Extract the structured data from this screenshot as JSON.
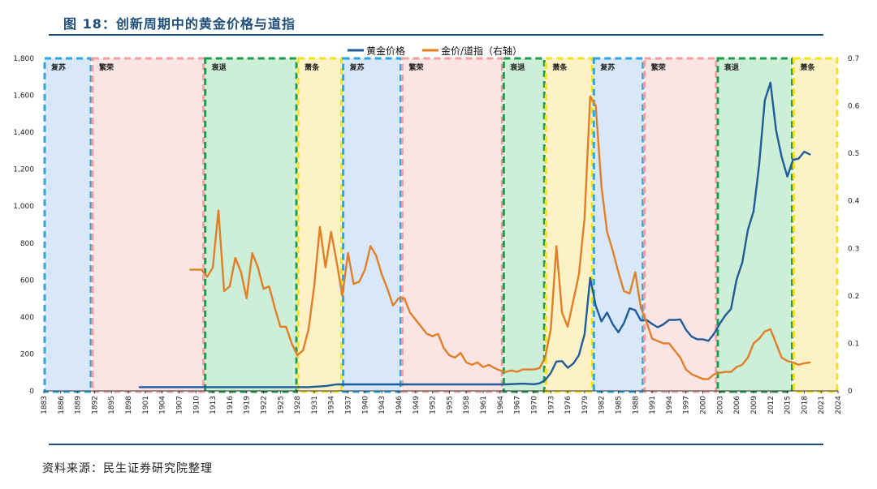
{
  "title": "图 18：创新周期中的黄金价格与道指",
  "source": "资料来源：民生证券研究院整理",
  "chart_data": {
    "type": "line",
    "legend": [
      "黄金价格",
      "金价/道指（右轴）"
    ],
    "legend_position": "top-center",
    "y_left": {
      "lim": [
        0,
        1800
      ],
      "ticks": [
        "0",
        "200",
        "400",
        "600",
        "800",
        "1,000",
        "1,200",
        "1,400",
        "1,600",
        "1,800"
      ]
    },
    "y_right": {
      "lim": [
        0,
        0.7
      ],
      "ticks": [
        "0",
        "0.1",
        "0.2",
        "0.3",
        "0.4",
        "0.5",
        "0.6",
        "0.7"
      ]
    },
    "xlim": [
      1883,
      2024
    ],
    "xticks": [
      "1883",
      "1886",
      "1889",
      "1892",
      "1895",
      "1898",
      "1901",
      "1904",
      "1907",
      "1910",
      "1913",
      "1916",
      "1919",
      "1922",
      "1925",
      "1928",
      "1931",
      "1934",
      "1937",
      "1940",
      "1943",
      "1946",
      "1949",
      "1952",
      "1955",
      "1958",
      "1961",
      "1964",
      "1967",
      "1970",
      "1973",
      "1976",
      "1979",
      "1982",
      "1985",
      "1988",
      "1991",
      "1994",
      "1997",
      "2000",
      "2003",
      "2006",
      "2009",
      "2012",
      "2015",
      "2018",
      "2021",
      "2024"
    ],
    "phases": [
      {
        "label": "复苏",
        "start": 1883,
        "end": 1891.5,
        "color": "blue"
      },
      {
        "label": "繁荣",
        "start": 1891.5,
        "end": 1911.5,
        "color": "red"
      },
      {
        "label": "衰退",
        "start": 1911.5,
        "end": 1928,
        "color": "green"
      },
      {
        "label": "萧条",
        "start": 1928,
        "end": 1936,
        "color": "yellow"
      },
      {
        "label": "复苏",
        "start": 1936,
        "end": 1946.5,
        "color": "blue"
      },
      {
        "label": "繁荣",
        "start": 1946.5,
        "end": 1964.5,
        "color": "red"
      },
      {
        "label": "衰退",
        "start": 1964.5,
        "end": 1972,
        "color": "green"
      },
      {
        "label": "萧条",
        "start": 1972,
        "end": 1980.5,
        "color": "yellow"
      },
      {
        "label": "复苏",
        "start": 1980.5,
        "end": 1989.5,
        "color": "blue"
      },
      {
        "label": "繁荣",
        "start": 1989.5,
        "end": 2002.5,
        "color": "red"
      },
      {
        "label": "衰退",
        "start": 2002.5,
        "end": 2016,
        "color": "green"
      },
      {
        "label": "萧条",
        "start": 2016,
        "end": 2024,
        "color": "yellow"
      }
    ],
    "series": [
      {
        "name": "黄金价格",
        "axis": "left",
        "color": "#1f5c99",
        "points": [
          [
            1900,
            20
          ],
          [
            1910,
            20
          ],
          [
            1920,
            20
          ],
          [
            1930,
            20
          ],
          [
            1933,
            26
          ],
          [
            1935,
            35
          ],
          [
            1945,
            35
          ],
          [
            1950,
            35
          ],
          [
            1960,
            35
          ],
          [
            1965,
            35
          ],
          [
            1968,
            39
          ],
          [
            1970,
            36
          ],
          [
            1971,
            41
          ],
          [
            1972,
            58
          ],
          [
            1973,
            97
          ],
          [
            1974,
            159
          ],
          [
            1975,
            161
          ],
          [
            1976,
            125
          ],
          [
            1977,
            148
          ],
          [
            1978,
            193
          ],
          [
            1979,
            307
          ],
          [
            1980,
            612
          ],
          [
            1981,
            460
          ],
          [
            1982,
            376
          ],
          [
            1983,
            424
          ],
          [
            1984,
            361
          ],
          [
            1985,
            317
          ],
          [
            1986,
            368
          ],
          [
            1987,
            447
          ],
          [
            1988,
            437
          ],
          [
            1989,
            381
          ],
          [
            1990,
            384
          ],
          [
            1991,
            362
          ],
          [
            1992,
            344
          ],
          [
            1993,
            360
          ],
          [
            1994,
            384
          ],
          [
            1995,
            384
          ],
          [
            1996,
            387
          ],
          [
            1997,
            331
          ],
          [
            1998,
            294
          ],
          [
            1999,
            279
          ],
          [
            2000,
            279
          ],
          [
            2001,
            271
          ],
          [
            2002,
            310
          ],
          [
            2003,
            363
          ],
          [
            2004,
            409
          ],
          [
            2005,
            444
          ],
          [
            2006,
            603
          ],
          [
            2007,
            695
          ],
          [
            2008,
            872
          ],
          [
            2009,
            972
          ],
          [
            2010,
            1225
          ],
          [
            2011,
            1572
          ],
          [
            2012,
            1669
          ],
          [
            2013,
            1411
          ],
          [
            2014,
            1266
          ],
          [
            2015,
            1160
          ],
          [
            2016,
            1251
          ],
          [
            2017,
            1257
          ],
          [
            2018,
            1295
          ],
          [
            2019,
            1280
          ]
        ]
      },
      {
        "name": "金价/道指（右轴）",
        "axis": "right",
        "color": "#e07f28",
        "points": [
          [
            1909,
            0.255
          ],
          [
            1911,
            0.255
          ],
          [
            1912,
            0.24
          ],
          [
            1913,
            0.26
          ],
          [
            1914,
            0.38
          ],
          [
            1915,
            0.21
          ],
          [
            1916,
            0.22
          ],
          [
            1917,
            0.28
          ],
          [
            1918,
            0.25
          ],
          [
            1919,
            0.195
          ],
          [
            1920,
            0.29
          ],
          [
            1921,
            0.26
          ],
          [
            1922,
            0.215
          ],
          [
            1923,
            0.22
          ],
          [
            1924,
            0.175
          ],
          [
            1925,
            0.135
          ],
          [
            1926,
            0.135
          ],
          [
            1927,
            0.1
          ],
          [
            1928,
            0.075
          ],
          [
            1929,
            0.085
          ],
          [
            1930,
            0.13
          ],
          [
            1931,
            0.22
          ],
          [
            1932,
            0.345
          ],
          [
            1933,
            0.26
          ],
          [
            1934,
            0.335
          ],
          [
            1935,
            0.27
          ],
          [
            1936,
            0.2
          ],
          [
            1937,
            0.29
          ],
          [
            1938,
            0.225
          ],
          [
            1939,
            0.23
          ],
          [
            1940,
            0.255
          ],
          [
            1941,
            0.305
          ],
          [
            1942,
            0.285
          ],
          [
            1943,
            0.245
          ],
          [
            1944,
            0.215
          ],
          [
            1945,
            0.18
          ],
          [
            1946,
            0.195
          ],
          [
            1947,
            0.195
          ],
          [
            1948,
            0.165
          ],
          [
            1949,
            0.15
          ],
          [
            1950,
            0.135
          ],
          [
            1951,
            0.12
          ],
          [
            1952,
            0.115
          ],
          [
            1953,
            0.12
          ],
          [
            1954,
            0.09
          ],
          [
            1955,
            0.075
          ],
          [
            1956,
            0.07
          ],
          [
            1957,
            0.08
          ],
          [
            1958,
            0.06
          ],
          [
            1959,
            0.055
          ],
          [
            1960,
            0.06
          ],
          [
            1961,
            0.05
          ],
          [
            1962,
            0.055
          ],
          [
            1963,
            0.048
          ],
          [
            1964,
            0.043
          ],
          [
            1965,
            0.04
          ],
          [
            1966,
            0.043
          ],
          [
            1967,
            0.04
          ],
          [
            1968,
            0.045
          ],
          [
            1969,
            0.045
          ],
          [
            1970,
            0.045
          ],
          [
            1971,
            0.048
          ],
          [
            1972,
            0.07
          ],
          [
            1973,
            0.13
          ],
          [
            1974,
            0.305
          ],
          [
            1975,
            0.165
          ],
          [
            1976,
            0.135
          ],
          [
            1977,
            0.19
          ],
          [
            1978,
            0.245
          ],
          [
            1979,
            0.365
          ],
          [
            1980,
            0.62
          ],
          [
            1981,
            0.6
          ],
          [
            1982,
            0.43
          ],
          [
            1983,
            0.335
          ],
          [
            1984,
            0.295
          ],
          [
            1985,
            0.25
          ],
          [
            1986,
            0.21
          ],
          [
            1987,
            0.205
          ],
          [
            1988,
            0.25
          ],
          [
            1989,
            0.175
          ],
          [
            1990,
            0.145
          ],
          [
            1991,
            0.11
          ],
          [
            1992,
            0.105
          ],
          [
            1993,
            0.1
          ],
          [
            1994,
            0.1
          ],
          [
            1995,
            0.085
          ],
          [
            1996,
            0.07
          ],
          [
            1997,
            0.045
          ],
          [
            1998,
            0.035
          ],
          [
            1999,
            0.03
          ],
          [
            2000,
            0.025
          ],
          [
            2001,
            0.025
          ],
          [
            2002,
            0.035
          ],
          [
            2003,
            0.038
          ],
          [
            2004,
            0.04
          ],
          [
            2005,
            0.04
          ],
          [
            2006,
            0.05
          ],
          [
            2007,
            0.055
          ],
          [
            2008,
            0.07
          ],
          [
            2009,
            0.1
          ],
          [
            2010,
            0.11
          ],
          [
            2011,
            0.125
          ],
          [
            2012,
            0.13
          ],
          [
            2013,
            0.1
          ],
          [
            2014,
            0.07
          ],
          [
            2015,
            0.063
          ],
          [
            2016,
            0.06
          ],
          [
            2017,
            0.055
          ],
          [
            2018,
            0.058
          ],
          [
            2019,
            0.06
          ]
        ]
      }
    ]
  }
}
